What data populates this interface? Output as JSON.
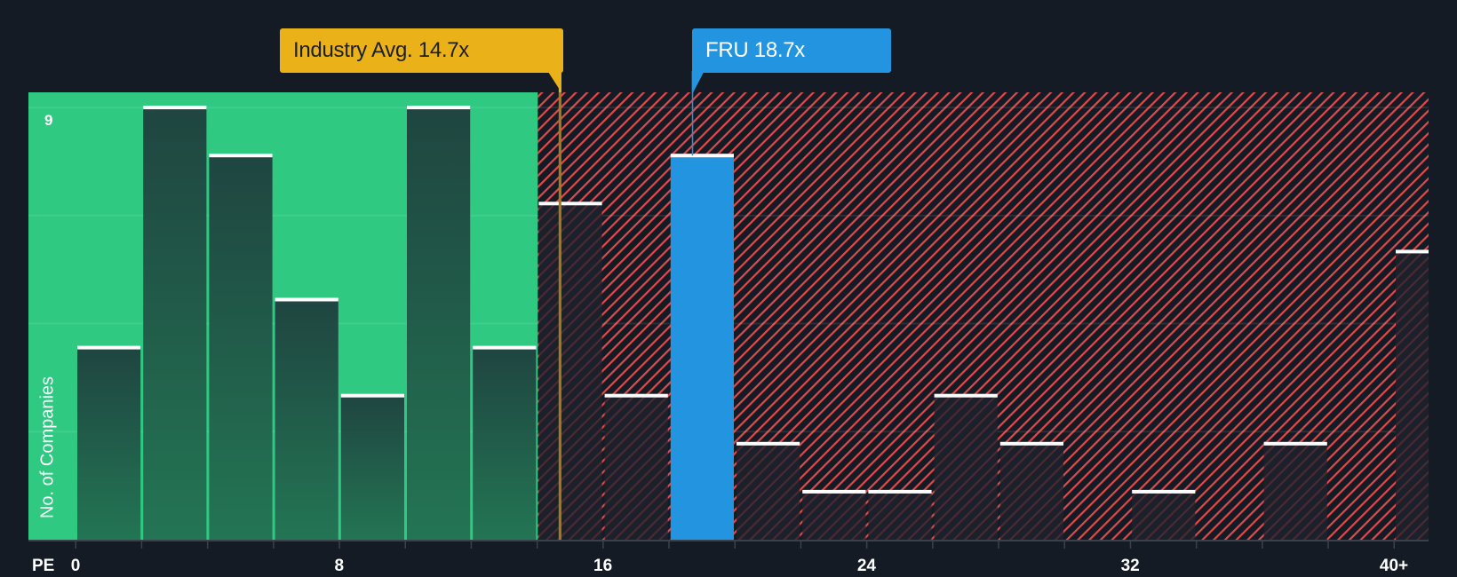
{
  "chart_data": {
    "type": "bar",
    "title": "",
    "xlabel": "PE",
    "ylabel": "No. of Companies",
    "x_tick_labels": [
      "0",
      "8",
      "16",
      "24",
      "32",
      "40+"
    ],
    "x_tick_values": [
      0,
      8,
      16,
      24,
      32,
      40
    ],
    "y_max_label": "9",
    "ylim": [
      0,
      9
    ],
    "grid": true,
    "bins": [
      "0-2",
      "2-4",
      "4-6",
      "6-8",
      "8-10",
      "10-12",
      "12-14",
      "14-16",
      "16-18",
      "18-20",
      "20-22",
      "22-24",
      "24-26",
      "26-28",
      "28-30",
      "30-32",
      "32-34",
      "34-36",
      "36-38",
      "38-40",
      "40+"
    ],
    "values": [
      4,
      9,
      8,
      5,
      3,
      9,
      4,
      7,
      3,
      8,
      2,
      1,
      1,
      3,
      2,
      0,
      1,
      0,
      2,
      0,
      6
    ],
    "highlight_bin_index": 9,
    "undervalued_zone_end": 14,
    "annotations": [
      {
        "label": "Industry Avg. 14.7x",
        "value": 14.7,
        "color": "#eab118"
      },
      {
        "label": "FRU 18.7x",
        "value": 18.7,
        "color": "#2394df"
      }
    ]
  },
  "labels": {
    "industry_callout": "Industry Avg. 14.7x",
    "company_callout": "FRU 18.7x",
    "x_axis_name": "PE",
    "y_axis_name": "No. of Companies",
    "y_max": "9"
  },
  "colors": {
    "background": "#151b24",
    "undervalued_zone": "#2fc982",
    "overvalued_hatch": "#e04a4a",
    "bar_green": "#1f4a40",
    "bar_dark": "#1c212b",
    "company_bar": "#2394df",
    "industry_line": "#eab118",
    "bar_cap": "#ffffff",
    "axis": "#3b414b"
  }
}
